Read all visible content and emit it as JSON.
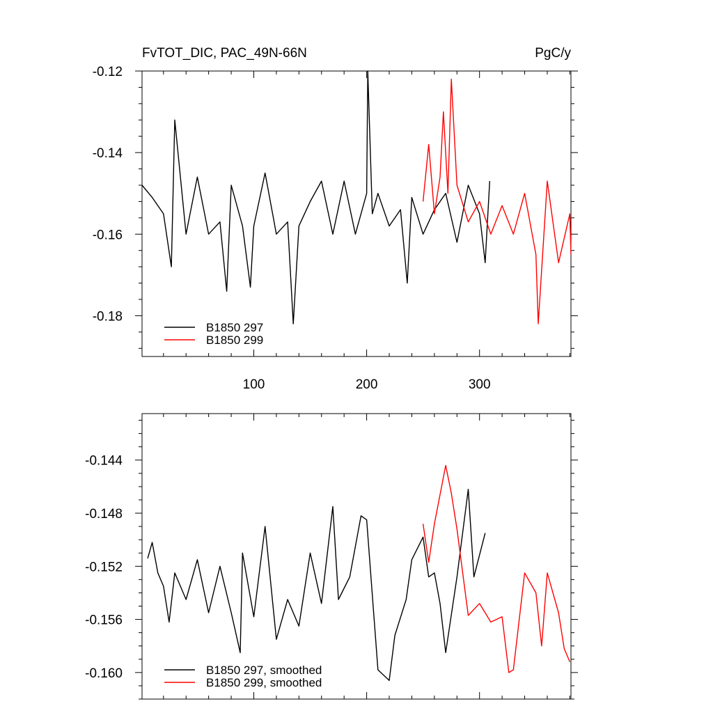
{
  "page": {
    "title": "FvTOT_DIC, PAC_49N-66N",
    "units": "PgC/y"
  },
  "chart_data": [
    {
      "type": "line",
      "title": "FvTOT_DIC, PAC_49N-66N",
      "units": "PgC/y",
      "xlim": [
        1,
        381
      ],
      "ylim": [
        -0.19,
        -0.12
      ],
      "xticks": [
        100,
        200,
        300
      ],
      "xtick_labels": [
        "100",
        "200",
        "300"
      ],
      "yticks": [
        -0.12,
        -0.14,
        -0.16,
        -0.18
      ],
      "ytick_labels": [
        "-0.12",
        "-0.14",
        "-0.16",
        "-0.18"
      ],
      "legend_position": "bottom-left",
      "series": [
        {
          "name": "B1850 297",
          "color": "#000000",
          "x": [
            1,
            10,
            20,
            27,
            30,
            40,
            50,
            60,
            70,
            76,
            80,
            90,
            97,
            100,
            110,
            120,
            130,
            135,
            140,
            150,
            160,
            170,
            180,
            190,
            200,
            201,
            205,
            210,
            220,
            230,
            236,
            240,
            250,
            260,
            270,
            280,
            290,
            300,
            305,
            309
          ],
          "y": [
            -0.148,
            -0.151,
            -0.155,
            -0.168,
            -0.132,
            -0.16,
            -0.146,
            -0.16,
            -0.157,
            -0.174,
            -0.148,
            -0.158,
            -0.173,
            -0.158,
            -0.145,
            -0.16,
            -0.157,
            -0.182,
            -0.158,
            -0.152,
            -0.147,
            -0.16,
            -0.147,
            -0.16,
            -0.15,
            -0.12,
            -0.155,
            -0.15,
            -0.158,
            -0.154,
            -0.172,
            -0.151,
            -0.16,
            -0.154,
            -0.15,
            -0.162,
            -0.148,
            -0.155,
            -0.167,
            -0.147
          ]
        },
        {
          "name": "B1850 299",
          "color": "#ff0000",
          "x": [
            250,
            255,
            260,
            265,
            268,
            272,
            275,
            280,
            290,
            300,
            310,
            320,
            330,
            340,
            350,
            352,
            360,
            370,
            380,
            381
          ],
          "y": [
            -0.152,
            -0.138,
            -0.155,
            -0.146,
            -0.13,
            -0.15,
            -0.122,
            -0.148,
            -0.157,
            -0.152,
            -0.16,
            -0.153,
            -0.16,
            -0.15,
            -0.165,
            -0.182,
            -0.147,
            -0.167,
            -0.155,
            -0.165
          ]
        }
      ]
    },
    {
      "type": "line",
      "xlim": [
        1,
        381
      ],
      "ylim": [
        -0.162,
        -0.1405
      ],
      "xticks": [
        100,
        200,
        300
      ],
      "yticks": [
        -0.144,
        -0.148,
        -0.152,
        -0.156,
        -0.16
      ],
      "ytick_labels": [
        "-0.144",
        "-0.148",
        "-0.152",
        "-0.156",
        "-0.160"
      ],
      "legend_position": "bottom-left",
      "series": [
        {
          "name": "B1850 297, smoothed",
          "color": "#000000",
          "x": [
            6,
            10,
            15,
            20,
            25,
            30,
            40,
            50,
            60,
            70,
            80,
            88,
            90,
            100,
            110,
            120,
            130,
            140,
            150,
            160,
            170,
            175,
            185,
            195,
            200,
            210,
            220,
            225,
            235,
            240,
            250,
            255,
            260,
            265,
            270,
            280,
            290,
            295,
            305
          ],
          "y": [
            -0.1514,
            -0.1502,
            -0.1525,
            -0.1535,
            -0.1562,
            -0.1525,
            -0.1545,
            -0.1515,
            -0.1555,
            -0.152,
            -0.1555,
            -0.1585,
            -0.151,
            -0.1558,
            -0.149,
            -0.1575,
            -0.1545,
            -0.1565,
            -0.151,
            -0.1548,
            -0.1475,
            -0.1545,
            -0.1528,
            -0.1482,
            -0.1485,
            -0.1598,
            -0.1606,
            -0.1572,
            -0.1545,
            -0.1515,
            -0.1498,
            -0.1528,
            -0.1525,
            -0.1548,
            -0.1585,
            -0.1528,
            -0.1462,
            -0.1528,
            -0.1495
          ]
        },
        {
          "name": "B1850 299, smoothed",
          "color": "#ff0000",
          "x": [
            250,
            255,
            260,
            270,
            275,
            280,
            290,
            300,
            310,
            320,
            326,
            330,
            340,
            350,
            355,
            360,
            370,
            375,
            380
          ],
          "y": [
            -0.1488,
            -0.1517,
            -0.1488,
            -0.1444,
            -0.1465,
            -0.1492,
            -0.1557,
            -0.1548,
            -0.1562,
            -0.1558,
            -0.16,
            -0.1598,
            -0.1525,
            -0.154,
            -0.158,
            -0.1525,
            -0.1555,
            -0.1582,
            -0.1592
          ]
        }
      ]
    }
  ]
}
